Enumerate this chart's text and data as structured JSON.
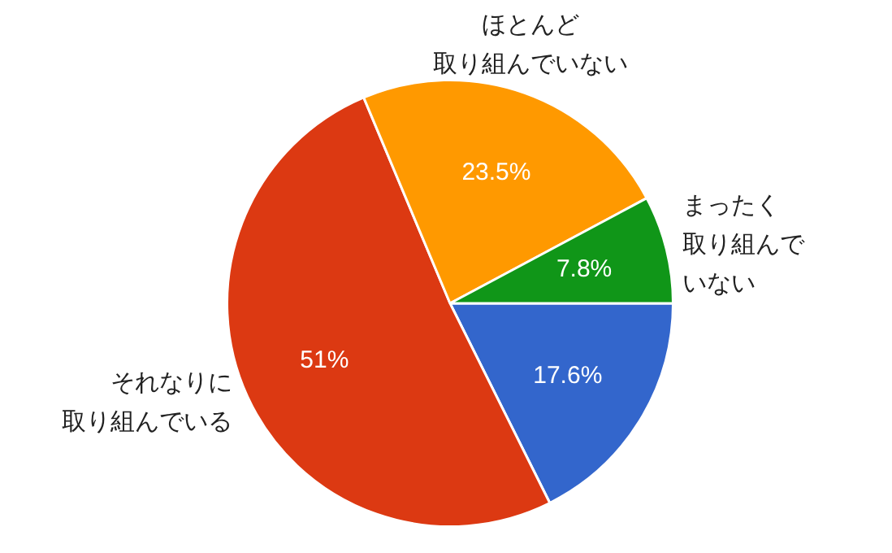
{
  "chart_data": {
    "type": "pie",
    "categories": [
      null,
      "それなりに取り組んでいる",
      "ほとんど取り組んでいない",
      "まったく取り組んでいない"
    ],
    "values": [
      17.6,
      51,
      23.5,
      7.8
    ],
    "colors": [
      "#3366cc",
      "#dc3912",
      "#ff9900",
      "#109618"
    ],
    "value_labels": [
      "17.6%",
      "51%",
      "23.5%",
      "7.8%"
    ],
    "legend": false
  }
}
